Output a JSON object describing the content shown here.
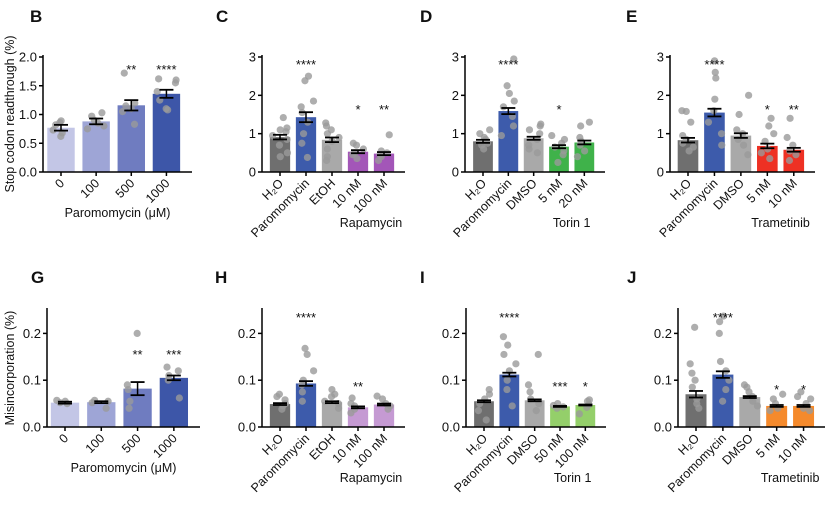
{
  "figure": {
    "ylabel_top": "Stop codon readthrough (%)",
    "ylabel_bottom": "Misincorporation (%)"
  },
  "colors": {
    "h2o": "#6f6f6f",
    "vehicle": "#a9a9a9",
    "paromomycin": "#3d5bab",
    "paro_0": "#c3c6e6",
    "paro_100": "#9ea5d6",
    "paro_500": "#6f7cc0",
    "paro_1000": "#3d56a8",
    "rapamycin": "#a356b8",
    "rapamycin_light": "#c59ad3",
    "torin": "#3fb24a",
    "torin_light": "#94cf6a",
    "trametinib_red": "#ee3124",
    "trametinib_orange": "#f58a2c",
    "dots": "#9a9a9a"
  },
  "chart_data": [
    {
      "panel": "B",
      "type": "bar",
      "title": "",
      "xlabel": "Paromomycin (μM)",
      "ylabel": "Stop codon readthrough (%)",
      "ylim": [
        0,
        2.0
      ],
      "yticks": [
        "0.0",
        "0.5",
        "1.0",
        "1.5",
        "2.0"
      ],
      "ytick_values": [
        0,
        0.5,
        1.0,
        1.5,
        2.0
      ],
      "categories": [
        "0",
        "100",
        "500",
        "1000"
      ],
      "values": [
        0.77,
        0.88,
        1.16,
        1.36
      ],
      "sem": [
        0.05,
        0.05,
        0.09,
        0.07
      ],
      "significance": [
        "",
        "",
        "**",
        "****"
      ],
      "color_keys": [
        "paro_0",
        "paro_100",
        "paro_500",
        "paro_1000"
      ],
      "points": [
        [
          0.62,
          0.68,
          0.73,
          0.82,
          0.86,
          0.89
        ],
        [
          0.75,
          0.8,
          0.85,
          0.9,
          0.97,
          1.03
        ],
        [
          0.83,
          1.05,
          1.1,
          1.15,
          1.2,
          1.72
        ],
        [
          1.08,
          1.1,
          1.25,
          1.4,
          1.55,
          1.6,
          1.62
        ]
      ]
    },
    {
      "panel": "C",
      "type": "bar",
      "group_label": "Rapamycin",
      "xlabel": "",
      "ylabel": "",
      "ylim": [
        0,
        3
      ],
      "yticks": [
        "0",
        "1",
        "2",
        "3"
      ],
      "ytick_values": [
        0,
        1,
        2,
        3
      ],
      "categories": [
        "H₂O",
        "Paromomycin",
        "EtOH",
        "10 nM",
        "100 nM"
      ],
      "values": [
        0.91,
        1.43,
        0.84,
        0.53,
        0.48
      ],
      "sem": [
        0.06,
        0.13,
        0.06,
        0.04,
        0.04
      ],
      "significance": [
        "",
        "****",
        "",
        "*",
        "**"
      ],
      "color_keys": [
        "h2o",
        "paromomycin",
        "vehicle",
        "rapamycin",
        "rapamycin"
      ],
      "points": [
        [
          0.4,
          0.5,
          0.7,
          0.85,
          0.95,
          1.05,
          1.1,
          1.15,
          1.42
        ],
        [
          0.38,
          0.75,
          1.0,
          1.3,
          1.55,
          1.7,
          1.85,
          2.38,
          2.5
        ],
        [
          0.3,
          0.4,
          0.6,
          0.8,
          0.9,
          1.0,
          1.1,
          1.2,
          1.28
        ],
        [
          0.35,
          0.45,
          0.5,
          0.6,
          0.7,
          0.75
        ],
        [
          0.3,
          0.4,
          0.45,
          0.5,
          0.55,
          0.97
        ]
      ]
    },
    {
      "panel": "D",
      "type": "bar",
      "group_label": "Torin 1",
      "xlabel": "",
      "ylabel": "",
      "ylim": [
        0,
        3
      ],
      "yticks": [
        "0",
        "1",
        "2",
        "3"
      ],
      "ytick_values": [
        0,
        1,
        2,
        3
      ],
      "categories": [
        "H₂O",
        "Paromomycin",
        "DMSO",
        "5 nM",
        "20 nM"
      ],
      "values": [
        0.8,
        1.59,
        0.88,
        0.66,
        0.77
      ],
      "sem": [
        0.04,
        0.08,
        0.04,
        0.04,
        0.05
      ],
      "significance": [
        "",
        "****",
        "",
        "*",
        ""
      ],
      "color_keys": [
        "h2o",
        "paromomycin",
        "vehicle",
        "torin",
        "torin"
      ],
      "points": [
        [
          0.6,
          0.7,
          0.75,
          0.85,
          0.9,
          1.0,
          1.1
        ],
        [
          0.95,
          1.2,
          1.45,
          1.7,
          1.85,
          2.05,
          2.25,
          2.95
        ],
        [
          0.5,
          0.6,
          0.7,
          0.85,
          1.0,
          1.1,
          1.2,
          1.25
        ],
        [
          0.25,
          0.45,
          0.55,
          0.65,
          0.75,
          0.85,
          0.95
        ],
        [
          0.4,
          0.55,
          0.7,
          0.8,
          0.9,
          1.2,
          1.3
        ]
      ]
    },
    {
      "panel": "E",
      "type": "bar",
      "group_label": "Trametinib",
      "xlabel": "",
      "ylabel": "",
      "ylim": [
        0,
        3
      ],
      "yticks": [
        "0",
        "1",
        "2",
        "3"
      ],
      "ytick_values": [
        0,
        1,
        2,
        3
      ],
      "categories": [
        "H₂O",
        "Paromomycin",
        "DMSO",
        "5 nM",
        "10 nM"
      ],
      "values": [
        0.83,
        1.55,
        0.95,
        0.68,
        0.58
      ],
      "sem": [
        0.06,
        0.1,
        0.06,
        0.06,
        0.05
      ],
      "significance": [
        "",
        "****",
        "",
        "*",
        "**"
      ],
      "color_keys": [
        "h2o",
        "paromomycin",
        "vehicle",
        "trametinib_red",
        "trametinib_red"
      ],
      "points": [
        [
          0.55,
          0.65,
          0.75,
          0.85,
          0.95,
          1.3,
          1.58,
          1.6
        ],
        [
          0.7,
          1.0,
          1.3,
          1.6,
          1.9,
          2.45,
          2.6,
          2.9
        ],
        [
          0.45,
          0.7,
          0.85,
          1.0,
          1.1,
          1.5,
          2.0
        ],
        [
          0.35,
          0.5,
          0.6,
          0.8,
          1.0,
          1.2,
          1.4
        ],
        [
          0.3,
          0.45,
          0.55,
          0.7,
          0.9,
          1.4
        ]
      ]
    },
    {
      "panel": "G",
      "type": "bar",
      "xlabel": "Paromomycin (μM)",
      "ylabel": "Misincorporation (%)",
      "ylim": [
        0,
        0.25
      ],
      "yticks": [
        "0.0",
        "0.1",
        "0.2"
      ],
      "ytick_values": [
        0,
        0.1,
        0.2
      ],
      "categories": [
        "0",
        "100",
        "500",
        "1000"
      ],
      "values": [
        0.052,
        0.053,
        0.082,
        0.105
      ],
      "sem": [
        0.002,
        0.002,
        0.014,
        0.005
      ],
      "significance": [
        "",
        "",
        "**",
        "***"
      ],
      "color_keys": [
        "paro_0",
        "paro_100",
        "paro_500",
        "paro_1000"
      ],
      "points": [
        [
          0.05,
          0.052,
          0.055,
          0.057
        ],
        [
          0.04,
          0.052,
          0.055,
          0.057
        ],
        [
          0.04,
          0.055,
          0.08,
          0.09,
          0.2
        ],
        [
          0.062,
          0.1,
          0.11,
          0.12,
          0.128
        ]
      ]
    },
    {
      "panel": "H",
      "type": "bar",
      "group_label": "Rapamycin",
      "xlabel": "",
      "ylabel": "",
      "ylim": [
        0,
        0.25
      ],
      "yticks": [
        "0.0",
        "0.1",
        "0.2"
      ],
      "ytick_values": [
        0,
        0.1,
        0.2
      ],
      "categories": [
        "H₂O",
        "Paromomycin",
        "EtOH",
        "10 nM",
        "100 nM"
      ],
      "values": [
        0.049,
        0.093,
        0.053,
        0.042,
        0.048
      ],
      "sem": [
        0.002,
        0.005,
        0.002,
        0.002,
        0.002
      ],
      "significance": [
        "",
        "****",
        "",
        "**",
        ""
      ],
      "color_keys": [
        "h2o",
        "paromomycin",
        "vehicle",
        "rapamycin_light",
        "rapamycin_light"
      ],
      "points": [
        [
          0.038,
          0.045,
          0.05,
          0.058,
          0.065,
          0.07
        ],
        [
          0.055,
          0.075,
          0.09,
          0.1,
          0.12,
          0.155,
          0.168
        ],
        [
          0.04,
          0.05,
          0.055,
          0.065,
          0.07,
          0.08
        ],
        [
          0.03,
          0.038,
          0.045,
          0.05,
          0.062
        ],
        [
          0.038,
          0.045,
          0.05,
          0.06,
          0.066
        ]
      ]
    },
    {
      "panel": "I",
      "type": "bar",
      "group_label": "Torin 1",
      "xlabel": "",
      "ylabel": "",
      "ylim": [
        0,
        0.25
      ],
      "yticks": [
        "0.0",
        "0.1",
        "0.2"
      ],
      "ytick_values": [
        0,
        0.1,
        0.2
      ],
      "categories": [
        "H₂O",
        "Paromomycin",
        "DMSO",
        "50 nM",
        "100 nM"
      ],
      "values": [
        0.055,
        0.112,
        0.057,
        0.044,
        0.047
      ],
      "sem": [
        0.002,
        0.004,
        0.002,
        0.001,
        0.001
      ],
      "significance": [
        "",
        "****",
        "",
        "***",
        "*"
      ],
      "color_keys": [
        "h2o",
        "paromomycin",
        "vehicle",
        "torin_light",
        "torin_light"
      ],
      "points": [
        [
          0.015,
          0.035,
          0.05,
          0.06,
          0.07,
          0.08
        ],
        [
          0.045,
          0.08,
          0.1,
          0.12,
          0.135,
          0.155,
          0.175,
          0.193
        ],
        [
          0.035,
          0.05,
          0.06,
          0.075,
          0.09,
          0.155
        ],
        [
          0.04,
          0.043,
          0.046,
          0.05
        ],
        [
          0.028,
          0.042,
          0.048,
          0.055,
          0.058
        ]
      ]
    },
    {
      "panel": "J",
      "type": "bar",
      "group_label": "Trametinib",
      "xlabel": "",
      "ylabel": "",
      "ylim": [
        0,
        0.25
      ],
      "yticks": [
        "0.0",
        "0.1",
        "0.2"
      ],
      "ytick_values": [
        0,
        0.1,
        0.2
      ],
      "categories": [
        "H₂O",
        "Paromomycin",
        "DMSO",
        "5 nM",
        "10 nM"
      ],
      "values": [
        0.07,
        0.112,
        0.064,
        0.045,
        0.045
      ],
      "sem": [
        0.007,
        0.007,
        0.002,
        0.002,
        0.002
      ],
      "significance": [
        "",
        "****",
        "",
        "*",
        "*"
      ],
      "color_keys": [
        "h2o",
        "paromomycin",
        "vehicle",
        "trametinib_orange",
        "trametinib_orange"
      ],
      "points": [
        [
          0.04,
          0.05,
          0.06,
          0.085,
          0.1,
          0.115,
          0.135,
          0.213
        ],
        [
          0.055,
          0.08,
          0.1,
          0.12,
          0.14,
          0.2,
          0.225,
          0.237
        ],
        [
          0.045,
          0.055,
          0.065,
          0.075,
          0.085,
          0.09
        ],
        [
          0.035,
          0.04,
          0.05,
          0.06,
          0.07
        ],
        [
          0.035,
          0.04,
          0.05,
          0.06,
          0.065,
          0.075
        ]
      ]
    }
  ]
}
